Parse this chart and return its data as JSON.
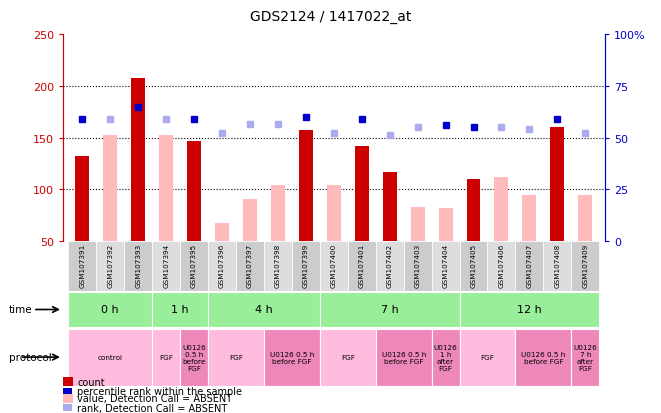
{
  "title": "GDS2124 / 1417022_at",
  "samples": [
    "GSM107391",
    "GSM107392",
    "GSM107393",
    "GSM107394",
    "GSM107395",
    "GSM107396",
    "GSM107397",
    "GSM107398",
    "GSM107399",
    "GSM107400",
    "GSM107401",
    "GSM107402",
    "GSM107403",
    "GSM107404",
    "GSM107405",
    "GSM107406",
    "GSM107407",
    "GSM107408",
    "GSM107409"
  ],
  "count_values": [
    132,
    null,
    208,
    null,
    147,
    null,
    null,
    null,
    157,
    null,
    142,
    117,
    null,
    null,
    110,
    null,
    null,
    160,
    null
  ],
  "absent_values": [
    null,
    153,
    null,
    153,
    null,
    68,
    91,
    104,
    null,
    104,
    null,
    null,
    83,
    82,
    null,
    112,
    95,
    null,
    95
  ],
  "rank_present": [
    168,
    null,
    180,
    null,
    168,
    null,
    null,
    null,
    170,
    null,
    168,
    null,
    null,
    162,
    160,
    null,
    null,
    168,
    null
  ],
  "rank_absent": [
    null,
    168,
    null,
    168,
    null,
    155,
    163,
    163,
    null,
    155,
    null,
    153,
    160,
    null,
    null,
    160,
    158,
    null,
    155
  ],
  "ylim_left": [
    50,
    250
  ],
  "ylim_right": [
    0,
    100
  ],
  "yticks_left": [
    50,
    100,
    150,
    200,
    250
  ],
  "yticks_right": [
    0,
    25,
    50,
    75,
    100
  ],
  "right_tick_labels": [
    "0",
    "25",
    "50",
    "75",
    "100%"
  ],
  "time_groups": [
    {
      "label": "0 h",
      "start": 0,
      "end": 3
    },
    {
      "label": "1 h",
      "start": 3,
      "end": 5
    },
    {
      "label": "4 h",
      "start": 5,
      "end": 9
    },
    {
      "label": "7 h",
      "start": 9,
      "end": 14
    },
    {
      "label": "12 h",
      "start": 14,
      "end": 19
    }
  ],
  "protocol_groups": [
    {
      "label": "control",
      "start": 0,
      "end": 3,
      "color": "#ffbbdd"
    },
    {
      "label": "FGF",
      "start": 3,
      "end": 4,
      "color": "#ffbbdd"
    },
    {
      "label": "U0126\n0.5 h\nbefore\nFGF",
      "start": 4,
      "end": 5,
      "color": "#ee88bb"
    },
    {
      "label": "FGF",
      "start": 5,
      "end": 7,
      "color": "#ffbbdd"
    },
    {
      "label": "U0126 0.5 h\nbefore FGF",
      "start": 7,
      "end": 9,
      "color": "#ee88bb"
    },
    {
      "label": "FGF",
      "start": 9,
      "end": 11,
      "color": "#ffbbdd"
    },
    {
      "label": "U0126 0.5 h\nbefore FGF",
      "start": 11,
      "end": 13,
      "color": "#ee88bb"
    },
    {
      "label": "U0126\n1 h\nafter\nFGF",
      "start": 13,
      "end": 14,
      "color": "#ee88bb"
    },
    {
      "label": "FGF",
      "start": 14,
      "end": 16,
      "color": "#ffbbdd"
    },
    {
      "label": "U0126 0.5 h\nbefore FGF",
      "start": 16,
      "end": 18,
      "color": "#ee88bb"
    },
    {
      "label": "U0126\n7 h\nafter\nFGF",
      "start": 18,
      "end": 19,
      "color": "#ee88bb"
    }
  ],
  "count_color": "#cc0000",
  "absent_color": "#ffbbbb",
  "rank_present_color": "#0000cc",
  "rank_absent_color": "#aaaaee",
  "bg_color": "#ffffff",
  "bar_width": 0.5,
  "axis_left_color": "#cc0000",
  "axis_right_color": "#0000cc",
  "time_bg_color": "#99ee99",
  "sample_col_even": "#cccccc",
  "sample_col_odd": "#dddddd"
}
